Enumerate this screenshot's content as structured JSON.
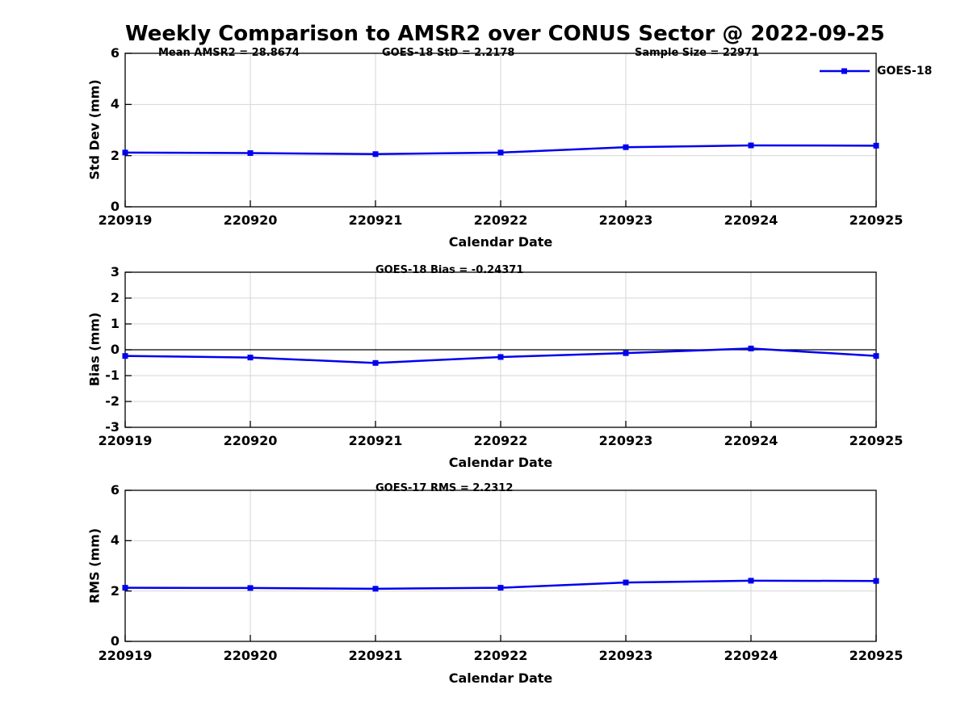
{
  "title": "Weekly Comparison to AMSR2 over CONUS Sector @ 2022-09-25",
  "annotations": {
    "mean_amsr2": "Mean AMSR2 = 28.8674",
    "goes18_std": "GOES-18 StD = 2.2178",
    "sample_size": "Sample Size = 22971"
  },
  "legend": {
    "label": "GOES-18",
    "color": "#0000EE"
  },
  "colors": {
    "line": "#0000EE",
    "grid": "#d6d6d6",
    "axis": "#000000"
  },
  "chart_data": [
    {
      "type": "line",
      "name": "std-dev",
      "title": "",
      "ylabel": "Std Dev (mm)",
      "xlabel": "Calendar Date",
      "categories": [
        "220919",
        "220920",
        "220921",
        "220922",
        "220923",
        "220924",
        "220925"
      ],
      "series": [
        {
          "name": "GOES-18",
          "color": "#0000EE",
          "values": [
            2.12,
            2.1,
            2.06,
            2.12,
            2.33,
            2.4,
            2.39
          ]
        }
      ],
      "ylim": [
        0,
        6
      ],
      "yticks": [
        0,
        2,
        4,
        6
      ],
      "grid": true,
      "zero_line": false,
      "legend_position": "top-right-outside"
    },
    {
      "type": "line",
      "name": "bias",
      "title": "GOES-18 Bias  = -0.24371",
      "ylabel": "Bias (mm)",
      "xlabel": "Calendar Date",
      "categories": [
        "220919",
        "220920",
        "220921",
        "220922",
        "220923",
        "220924",
        "220925"
      ],
      "series": [
        {
          "name": "GOES-18",
          "color": "#0000EE",
          "values": [
            -0.24,
            -0.3,
            -0.51,
            -0.28,
            -0.13,
            0.05,
            -0.24
          ]
        }
      ],
      "ylim": [
        -3,
        3
      ],
      "yticks": [
        -3,
        -2,
        -1,
        0,
        1,
        2,
        3
      ],
      "grid": true,
      "zero_line": true
    },
    {
      "type": "line",
      "name": "rms",
      "title": "GOES-17 RMS = 2.2312",
      "ylabel": "RMS (mm)",
      "xlabel": "Calendar Date",
      "categories": [
        "220919",
        "220920",
        "220921",
        "220922",
        "220923",
        "220924",
        "220925"
      ],
      "series": [
        {
          "name": "GOES-18",
          "color": "#0000EE",
          "values": [
            2.13,
            2.12,
            2.09,
            2.13,
            2.34,
            2.41,
            2.4
          ]
        }
      ],
      "ylim": [
        0,
        6
      ],
      "yticks": [
        0,
        2,
        4,
        6
      ],
      "grid": true,
      "zero_line": false
    }
  ]
}
